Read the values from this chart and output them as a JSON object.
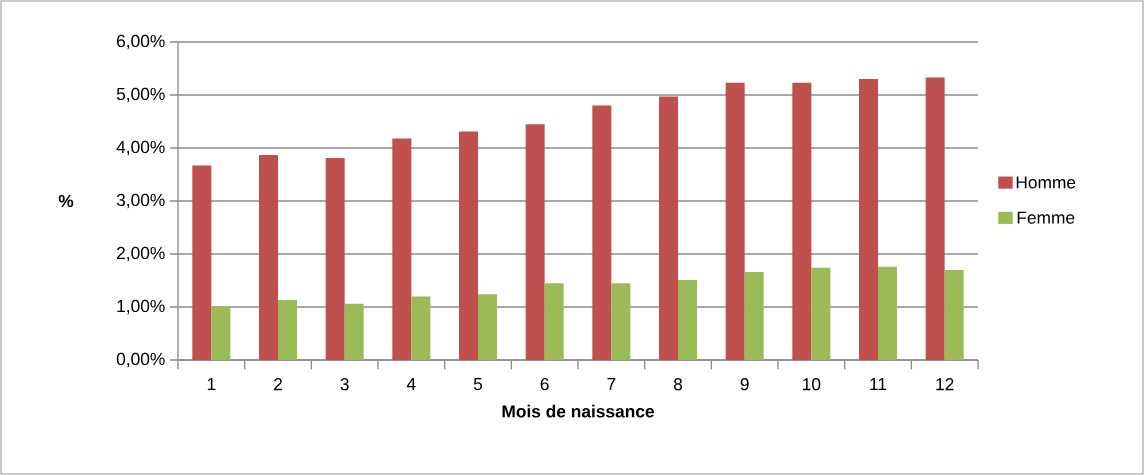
{
  "chart_data": {
    "type": "bar",
    "xlabel": "Mois de naissance",
    "ylabel": "%",
    "categories": [
      "1",
      "2",
      "3",
      "4",
      "5",
      "6",
      "7",
      "8",
      "9",
      "10",
      "11",
      "12"
    ],
    "series": [
      {
        "name": "Homme",
        "color": "#c0504d",
        "values": [
          3.67,
          3.87,
          3.81,
          4.18,
          4.31,
          4.45,
          4.8,
          4.97,
          5.23,
          5.23,
          5.3,
          5.33
        ]
      },
      {
        "name": "Femme",
        "color": "#9bbb59",
        "values": [
          1.02,
          1.13,
          1.06,
          1.2,
          1.24,
          1.45,
          1.45,
          1.51,
          1.66,
          1.74,
          1.76,
          1.7
        ]
      }
    ],
    "ylim": [
      0,
      6
    ],
    "yticks": [
      {
        "value": 0,
        "label": "0,00%"
      },
      {
        "value": 1,
        "label": "1,00%"
      },
      {
        "value": 2,
        "label": "2,00%"
      },
      {
        "value": 3,
        "label": "3,00%"
      },
      {
        "value": 4,
        "label": "4,00%"
      },
      {
        "value": 5,
        "label": "5,00%"
      },
      {
        "value": 6,
        "label": "6,00%"
      }
    ],
    "grid": "y",
    "legend": "right"
  }
}
